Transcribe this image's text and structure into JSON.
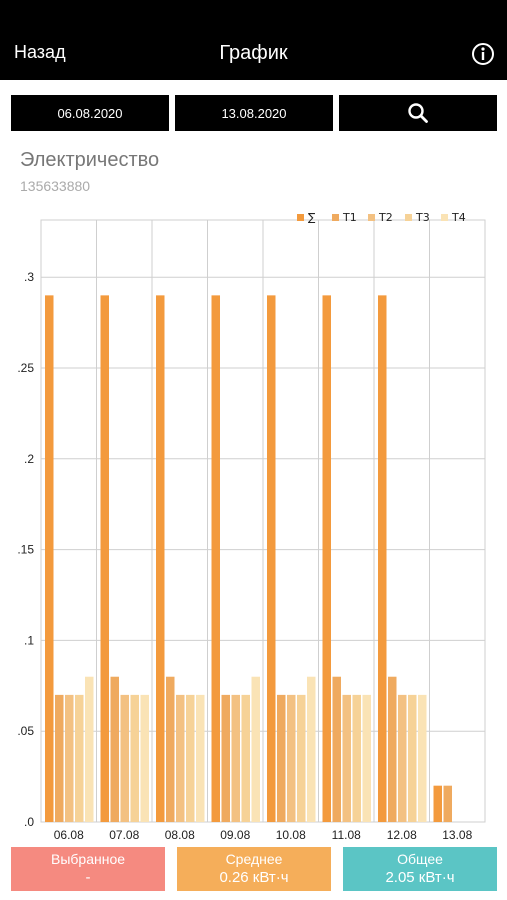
{
  "nav": {
    "back": "Назад",
    "title": "График"
  },
  "filter": {
    "date_from": "06.08.2020",
    "date_to": "13.08.2020"
  },
  "meter": {
    "name": "Электричество",
    "id": "135633880"
  },
  "chart_data": {
    "type": "bar",
    "categories": [
      "06.08",
      "07.08",
      "08.08",
      "09.08",
      "10.08",
      "11.08",
      "12.08",
      "13.08"
    ],
    "series": [
      {
        "name": "∑",
        "values": [
          0.29,
          0.29,
          0.29,
          0.29,
          0.29,
          0.29,
          0.29,
          0.02
        ]
      },
      {
        "name": "T1",
        "values": [
          0.07,
          0.08,
          0.08,
          0.07,
          0.07,
          0.08,
          0.08,
          0.02
        ]
      },
      {
        "name": "T2",
        "values": [
          0.07,
          0.07,
          0.07,
          0.07,
          0.07,
          0.07,
          0.07,
          0
        ]
      },
      {
        "name": "T3",
        "values": [
          0.07,
          0.07,
          0.07,
          0.07,
          0.07,
          0.07,
          0.07,
          0
        ]
      },
      {
        "name": "T4",
        "values": [
          0.08,
          0.07,
          0.07,
          0.08,
          0.08,
          0.07,
          0.07,
          0
        ]
      }
    ],
    "colors": [
      "#F39A3D",
      "#EFAA5F",
      "#F3C182",
      "#F6D297",
      "#FAE3B5"
    ],
    "yticks": [
      ".0",
      ".05",
      ".1",
      ".15",
      ".2",
      ".25",
      ".3"
    ],
    "ylim": [
      0,
      0.3
    ],
    "grid": true,
    "legend": "top-right"
  },
  "stats": {
    "selected": {
      "label": "Выбранное",
      "value": "-",
      "color": "#F58A80"
    },
    "average": {
      "label": "Среднее",
      "value": "0.26 кВт·ч",
      "color": "#F5AE5A"
    },
    "total": {
      "label": "Общее",
      "value": "2.05 кВт·ч",
      "color": "#5BC5C5"
    }
  }
}
